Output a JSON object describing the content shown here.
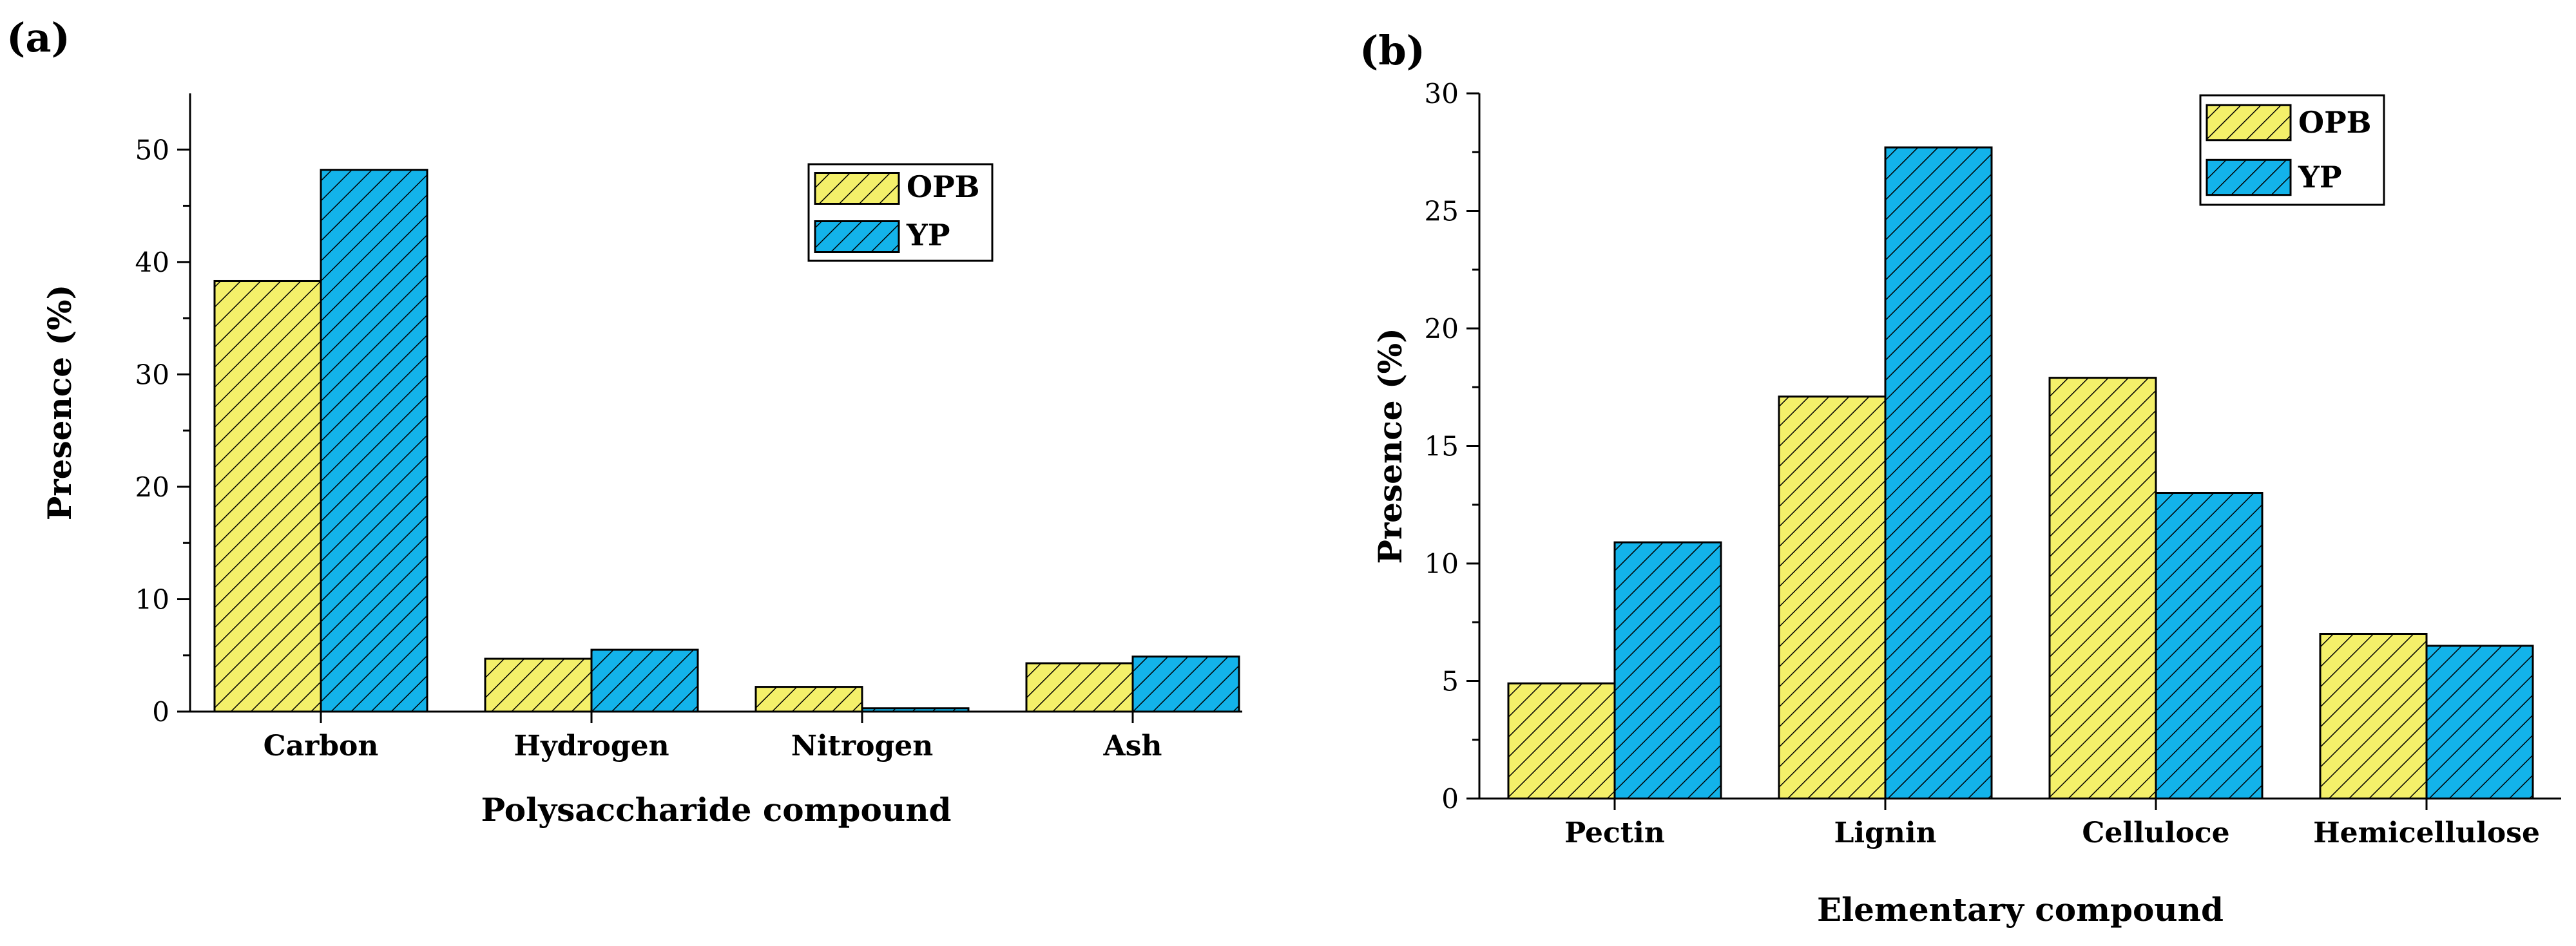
{
  "colors": {
    "opb": "#f4f06a",
    "yp": "#13b3ea",
    "axis": "#000000"
  },
  "chart_data": [
    {
      "panel": "(a)",
      "type": "bar",
      "categories": [
        "Carbon",
        "Hydrogen",
        "Nitrogen",
        "Ash"
      ],
      "series": [
        {
          "name": "OPB",
          "values": [
            38.3,
            4.7,
            2.2,
            4.3
          ]
        },
        {
          "name": "YP",
          "values": [
            48.2,
            5.5,
            0.3,
            4.9
          ]
        }
      ],
      "xlabel": "Polysaccharide compound",
      "ylabel": "Presence (%)",
      "ylim": [
        0,
        55
      ],
      "yticks": [
        0,
        10,
        20,
        30,
        40,
        50
      ],
      "legend": "top-right"
    },
    {
      "panel": "(b)",
      "type": "bar",
      "categories": [
        "Pectin",
        "Lignin",
        "Celluloce",
        "Hemicellulose"
      ],
      "series": [
        {
          "name": "OPB",
          "values": [
            4.9,
            17.1,
            17.9,
            7.0
          ]
        },
        {
          "name": "YP",
          "values": [
            10.9,
            27.7,
            13.0,
            6.5
          ]
        }
      ],
      "xlabel": "Elementary compound",
      "ylabel": "Presence (%)",
      "ylim": [
        0,
        30
      ],
      "yticks": [
        0,
        5,
        10,
        15,
        20,
        25,
        30
      ],
      "legend": "top-right"
    }
  ]
}
